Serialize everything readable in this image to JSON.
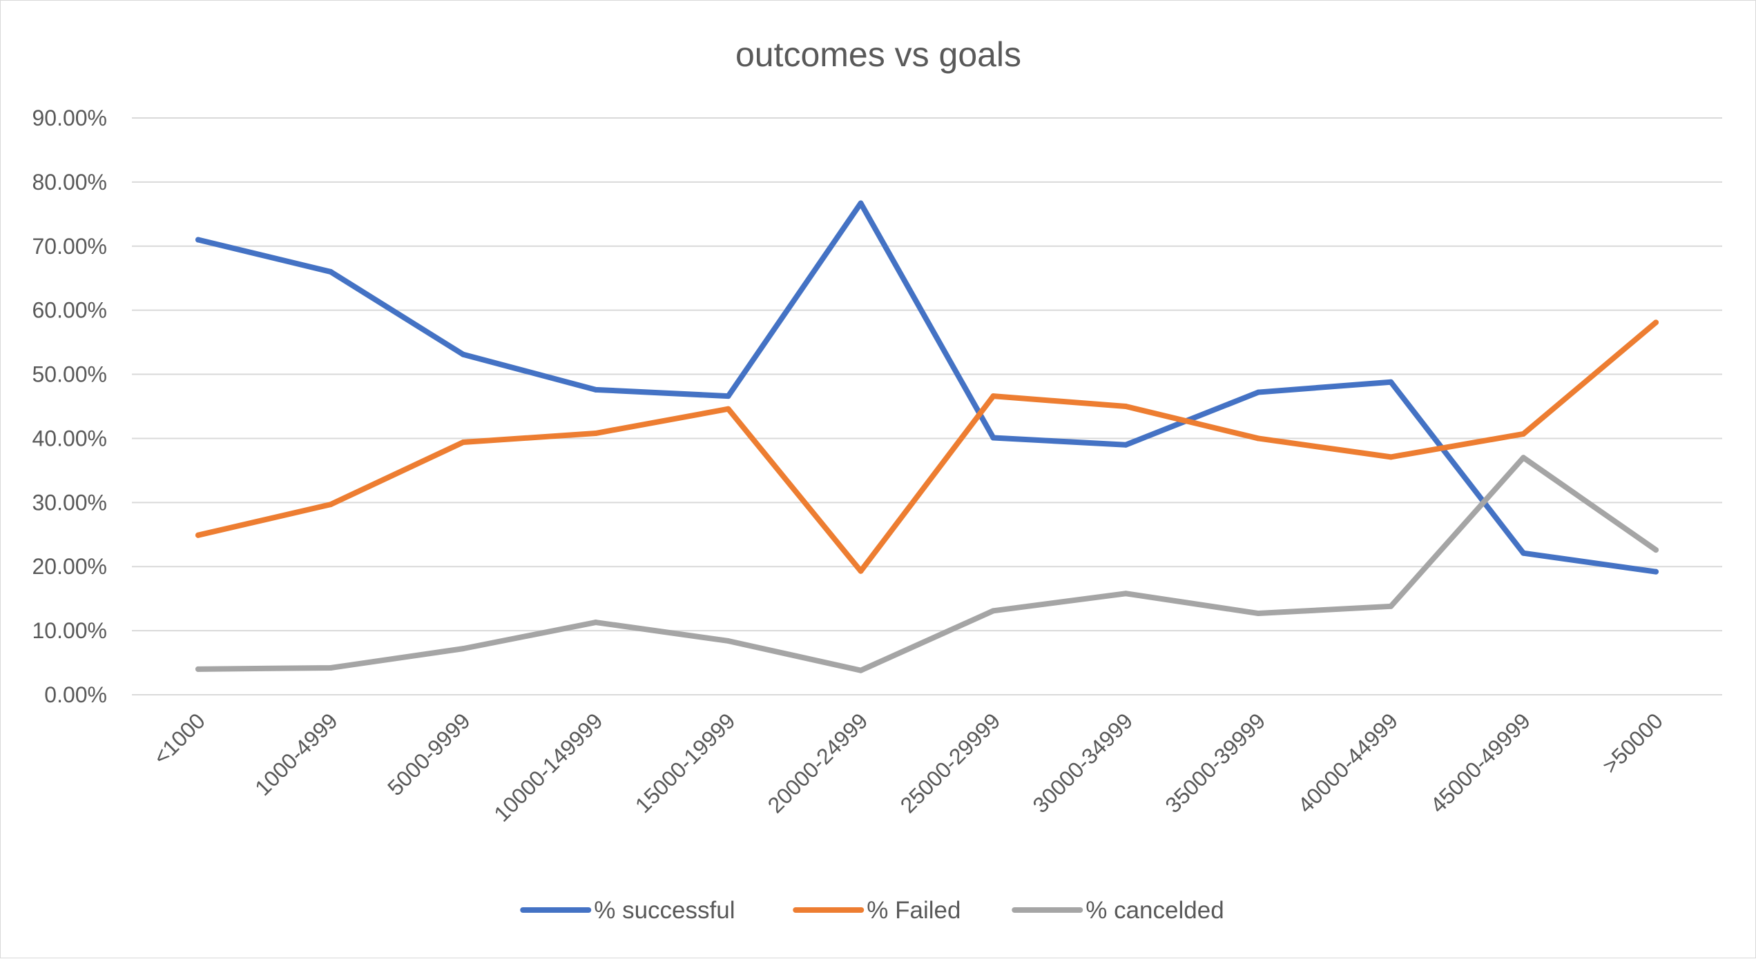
{
  "chart_data": {
    "type": "line",
    "title": "outcomes vs goals",
    "xlabel": "",
    "ylabel": "",
    "categories": [
      "<1000",
      "1000-4999",
      "5000-9999",
      "10000-149999",
      "15000-19999",
      "20000-24999",
      "25000-29999",
      "30000-34999",
      "35000-39999",
      "40000-44999",
      "45000-49999",
      ">50000"
    ],
    "ylim": [
      0,
      90
    ],
    "y_ticks": [
      0,
      10,
      20,
      30,
      40,
      50,
      60,
      70,
      80,
      90
    ],
    "y_tick_labels": [
      "0.00%",
      "10.00%",
      "20.00%",
      "30.00%",
      "40.00%",
      "50.00%",
      "60.00%",
      "70.00%",
      "80.00%",
      "90.00%"
    ],
    "grid": true,
    "legend_position": "bottom",
    "series": [
      {
        "name": "% successful",
        "color": "#4472C4",
        "values": [
          71.0,
          66.0,
          53.1,
          47.6,
          46.6,
          76.7,
          40.1,
          39.0,
          47.2,
          48.8,
          22.1,
          19.2
        ]
      },
      {
        "name": "% Failed",
        "color": "#ED7D31",
        "values": [
          24.9,
          29.7,
          39.4,
          40.8,
          44.6,
          19.3,
          46.6,
          45.0,
          40.0,
          37.1,
          40.7,
          58.1
        ]
      },
      {
        "name": "% cancelded",
        "color": "#A5A5A5",
        "values": [
          4.0,
          4.2,
          7.2,
          11.3,
          8.4,
          3.8,
          13.1,
          15.8,
          12.7,
          13.8,
          37.0,
          22.6
        ]
      }
    ]
  }
}
